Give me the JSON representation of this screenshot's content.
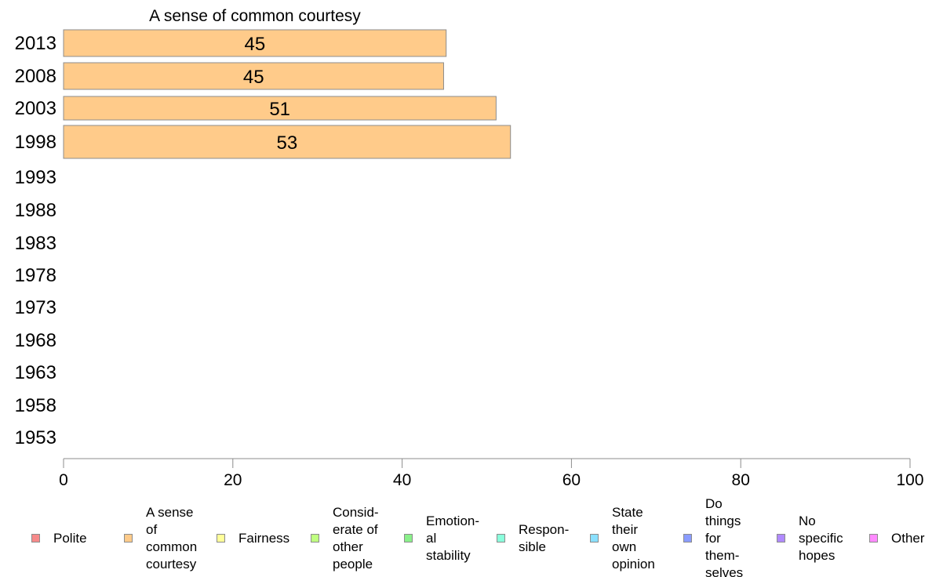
{
  "chart_data": {
    "type": "bar",
    "orientation": "horizontal",
    "title": "A sense of common courtesy",
    "categories": [
      "2013",
      "2008",
      "2003",
      "1998",
      "1993",
      "1988",
      "1983",
      "1978",
      "1973",
      "1968",
      "1963",
      "1958",
      "1953"
    ],
    "series": [
      {
        "name": "A sense of common courtesy",
        "color": "#ffcb8a",
        "values": [
          45.2,
          44.9,
          51.1,
          52.8,
          null,
          null,
          null,
          null,
          null,
          null,
          null,
          null,
          null
        ],
        "value_labels": [
          "45",
          "45",
          "51",
          "53",
          "",
          "",
          "",
          "",
          "",
          "",
          "",
          "",
          ""
        ]
      }
    ],
    "xlim": [
      0,
      100
    ],
    "x_ticks": [
      "0",
      "20",
      "40",
      "60",
      "80",
      "100"
    ],
    "xlabel": "",
    "ylabel": "",
    "grid": false,
    "legend_position": "bottom"
  },
  "legend": [
    {
      "label": "Polite",
      "color": "#f78a8a"
    },
    {
      "label": "A sense\nof\ncommon\ncourtesy",
      "color": "#ffcb8a"
    },
    {
      "label": "Fairness",
      "color": "#ffff99"
    },
    {
      "label": "Consid-\nerate of\nother\npeople",
      "color": "#bfff80"
    },
    {
      "label": "Emotion-\nal\nstability",
      "color": "#8af08a"
    },
    {
      "label": "Respon-\nsible",
      "color": "#8affdc"
    },
    {
      "label": "State\ntheir\nown\nopinion",
      "color": "#8ae0ff"
    },
    {
      "label": "Do\nthings\nfor\nthem-\nselves",
      "color": "#8a9cff"
    },
    {
      "label": "No\nspecific\nhopes",
      "color": "#b08aff"
    },
    {
      "label": "Other",
      "color": "#ff8aff"
    }
  ]
}
